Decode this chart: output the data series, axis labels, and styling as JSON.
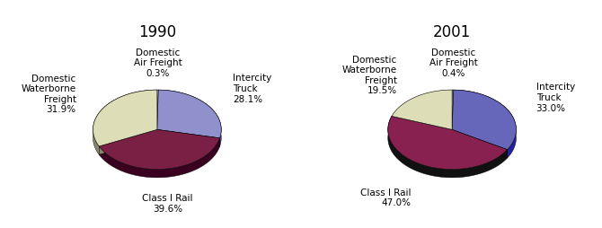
{
  "chart1": {
    "title": "1990",
    "slices": [
      {
        "label": "Domestic\nAir Freight\n0.3%",
        "value": 0.3,
        "color": "#d8d8d8",
        "side_color": "#a0a0a0"
      },
      {
        "label": "Intercity\nTruck\n28.1%",
        "value": 28.1,
        "color": "#9090cc",
        "side_color": "#4040a0"
      },
      {
        "label": "Class I Rail\n39.6%",
        "value": 39.6,
        "color": "#7a2045",
        "side_color": "#3a0020"
      },
      {
        "label": "Domestic\nWaterborne\nFreight\n31.9%",
        "value": 31.9,
        "color": "#ddddb8",
        "side_color": "#888870"
      }
    ],
    "startangle": 90
  },
  "chart2": {
    "title": "2001",
    "slices": [
      {
        "label": "Domestic\nAir Freight\n0.4%",
        "value": 0.4,
        "color": "#c0d0d0",
        "side_color": "#808080"
      },
      {
        "label": "Intercity\nTruck\n33.0%",
        "value": 33.0,
        "color": "#6666bb",
        "side_color": "#2222a0"
      },
      {
        "label": "Class I Rail\n47.0%",
        "value": 47.0,
        "color": "#882050",
        "side_color": "#111111"
      },
      {
        "label": "Domestic\nWaterborne\nFreight\n19.5%",
        "value": 19.5,
        "color": "#ddddb8",
        "side_color": "#888870"
      }
    ],
    "startangle": 90
  },
  "bg": "#ffffff",
  "title_fs": 12,
  "label_fs": 7.5
}
